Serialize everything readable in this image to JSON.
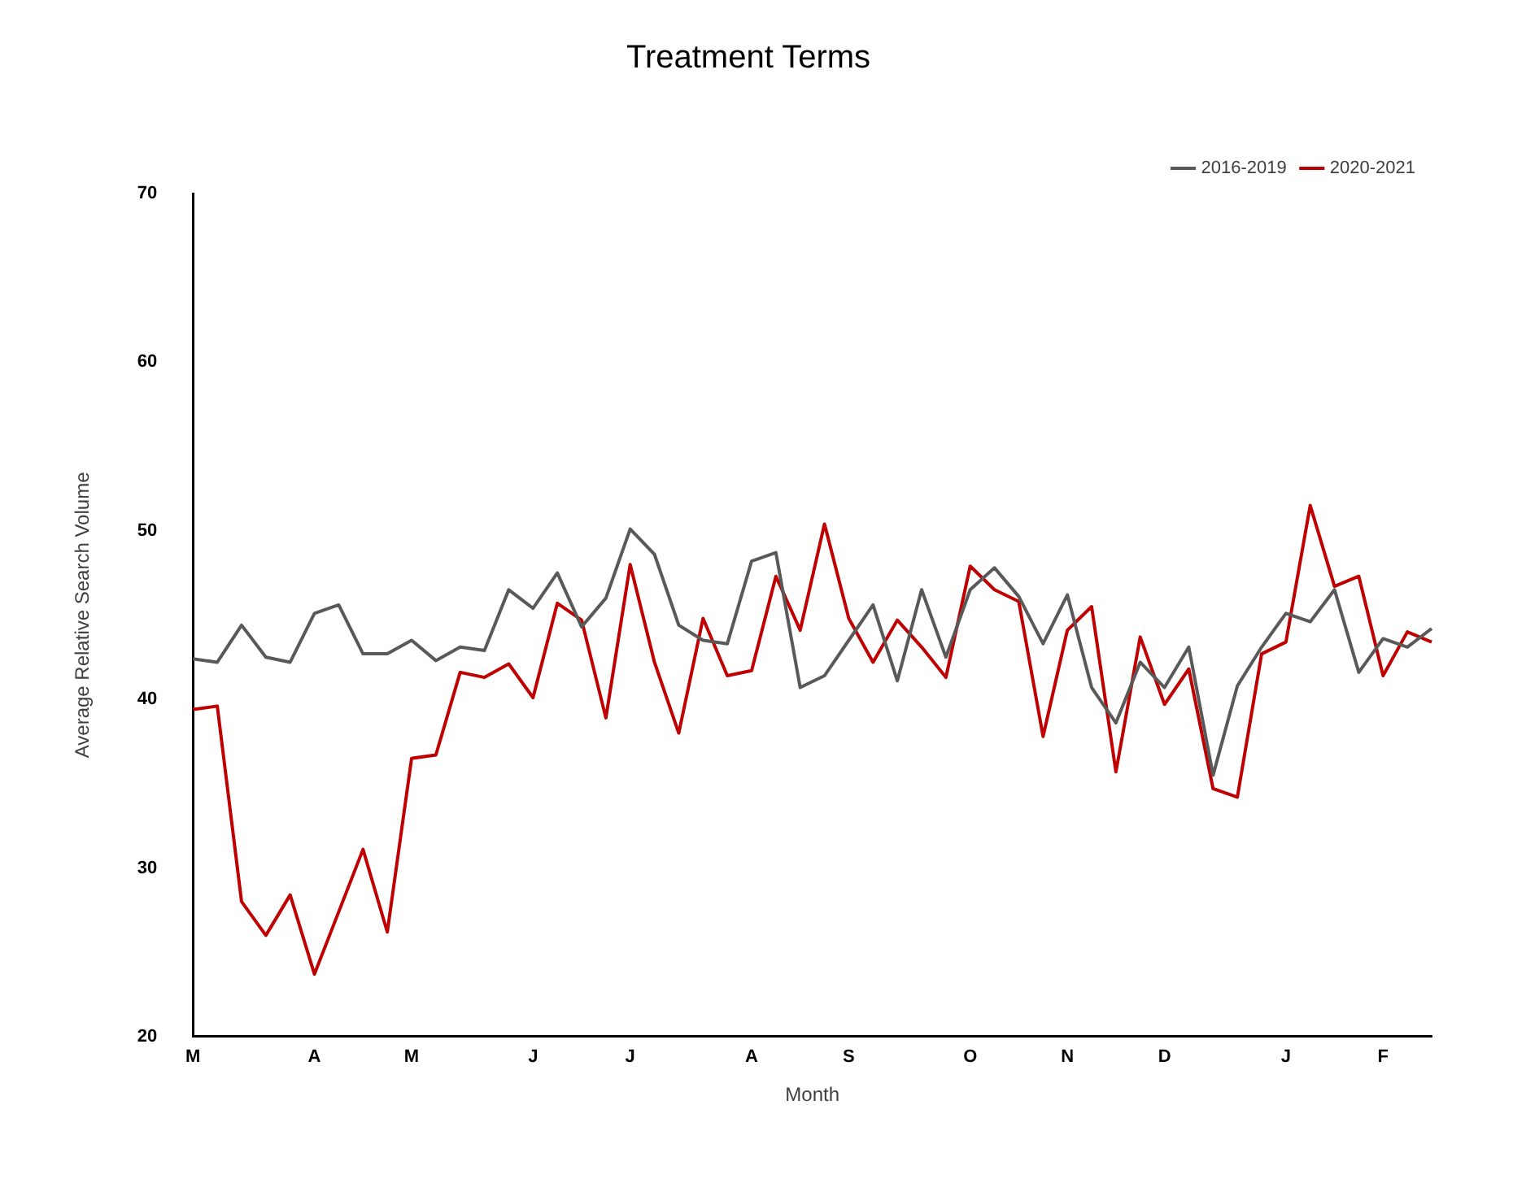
{
  "chart_data": {
    "type": "line",
    "title": "Treatment Terms",
    "xlabel": "Month",
    "ylabel": "Average Relative Search Volume",
    "categories": [
      "M",
      null,
      null,
      null,
      null,
      "A",
      null,
      null,
      null,
      "M",
      null,
      null,
      null,
      null,
      "J",
      null,
      null,
      null,
      "J",
      null,
      null,
      null,
      null,
      "A",
      null,
      null,
      null,
      "S",
      null,
      null,
      null,
      null,
      "O",
      null,
      null,
      null,
      "N",
      null,
      null,
      null,
      "D",
      null,
      null,
      null,
      null,
      "J",
      null,
      null,
      null,
      "F",
      null,
      null
    ],
    "series": [
      {
        "name": "2016-2019",
        "color": "#595959",
        "values": [
          42.4,
          42.2,
          44.4,
          42.5,
          42.2,
          45.1,
          45.6,
          42.7,
          42.7,
          43.5,
          42.3,
          43.1,
          42.9,
          46.5,
          45.4,
          47.5,
          44.3,
          46.0,
          50.1,
          48.6,
          44.4,
          43.5,
          43.3,
          48.2,
          48.7,
          40.7,
          41.4,
          43.5,
          45.6,
          41.1,
          46.5,
          42.5,
          46.5,
          47.8,
          46.1,
          43.3,
          46.2,
          40.7,
          38.6,
          42.2,
          40.7,
          43.1,
          35.5,
          40.8,
          43.1,
          45.1,
          44.6,
          46.5,
          41.6,
          43.6,
          43.1,
          44.2
        ]
      },
      {
        "name": "2020-2021",
        "color": "#c00000",
        "values": [
          39.4,
          39.6,
          28.0,
          26.0,
          28.4,
          23.7,
          27.4,
          31.1,
          26.2,
          36.5,
          36.7,
          41.6,
          41.3,
          42.1,
          40.1,
          45.7,
          44.7,
          38.9,
          48.0,
          42.2,
          38.0,
          44.8,
          41.4,
          41.7,
          47.3,
          44.1,
          50.4,
          44.8,
          42.2,
          44.7,
          43.1,
          41.3,
          47.9,
          46.5,
          45.8,
          37.8,
          44.1,
          45.5,
          35.7,
          43.7,
          39.7,
          41.8,
          34.7,
          34.2,
          42.7,
          43.4,
          51.5,
          46.7,
          47.3,
          41.4,
          44.0,
          43.4
        ]
      }
    ],
    "ylim": [
      20,
      70
    ],
    "yticks": [
      20,
      30,
      40,
      50,
      60,
      70
    ],
    "grid": false,
    "legend": "top right",
    "marker": "none",
    "line_style": "solid"
  }
}
